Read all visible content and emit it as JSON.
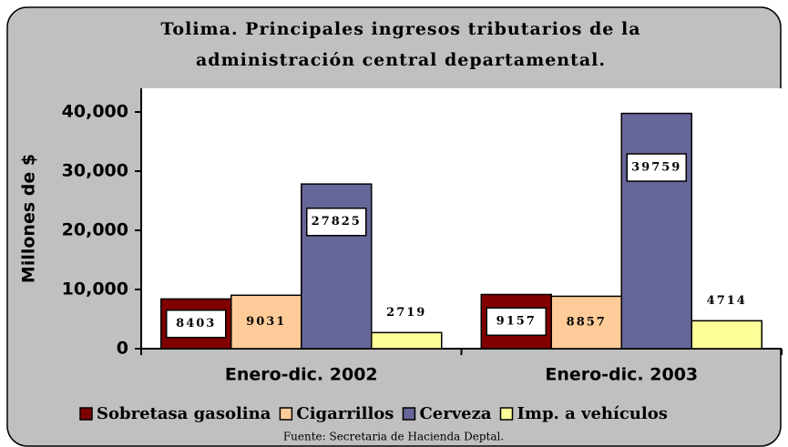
{
  "chart_data": {
    "type": "bar",
    "title": "Tolima. Principales ingresos tributarios de la administración central departamental.",
    "y_label": "Millones de $",
    "categories": [
      "Enero-dic. 2002",
      "Enero-dic. 2003"
    ],
    "series": [
      {
        "name": "Sobretasa gasolina",
        "color": "#800000",
        "values": [
          8403,
          9157
        ]
      },
      {
        "name": "Cigarrillos",
        "color": "#ffcc99",
        "values": [
          9031,
          8857
        ]
      },
      {
        "name": "Cerveza",
        "color": "#666699",
        "values": [
          27825,
          39759
        ]
      },
      {
        "name": "Imp. a vehículos",
        "color": "#ffff99",
        "values": [
          2719,
          4714
        ]
      }
    ],
    "ylim": [
      0,
      44000
    ],
    "yticks": [
      0,
      {
        "value": 10000,
        "label": "10,000"
      },
      {
        "value": 20000,
        "label": "20,000"
      },
      {
        "value": 30000,
        "label": "30,000"
      },
      {
        "value": 40000,
        "label": "40,000"
      }
    ],
    "legend": "bottom",
    "source": "Fuente: Secretaria de Hacienda Deptal."
  }
}
